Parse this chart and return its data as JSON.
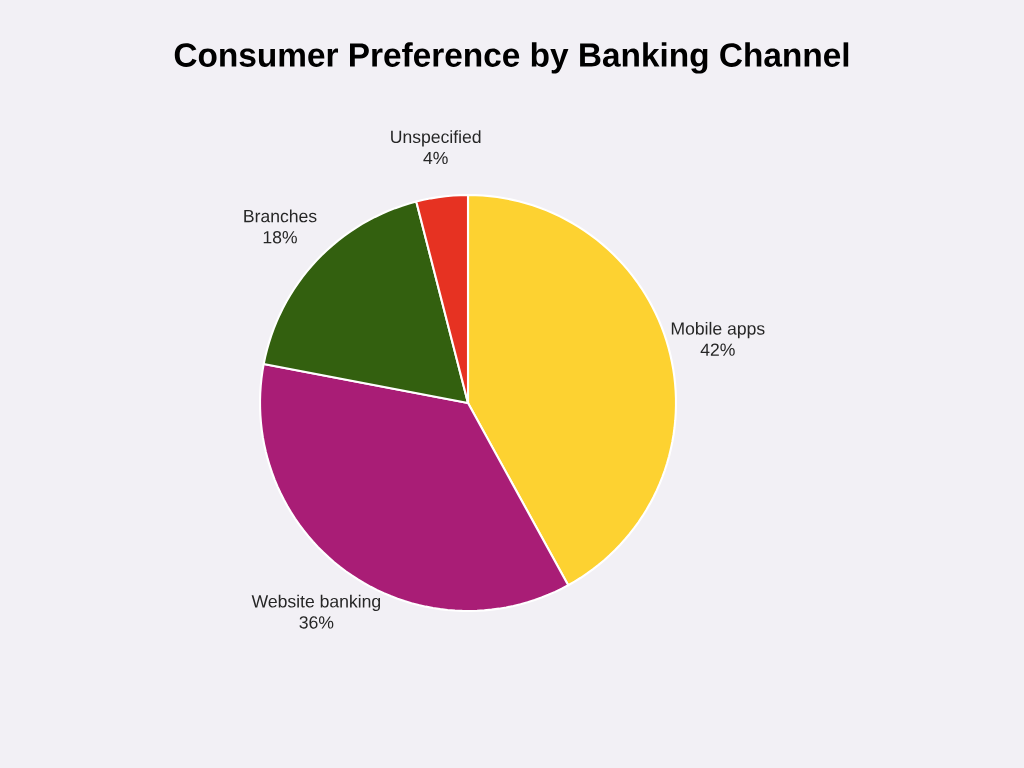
{
  "chart_data": {
    "type": "pie",
    "title": "Consumer Preference by Banking Channel",
    "categories": [
      "Mobile apps",
      "Website banking",
      "Branches",
      "Unspecified"
    ],
    "values": [
      42,
      36,
      18,
      4
    ],
    "value_labels": [
      "42%",
      "36%",
      "18%",
      "4%"
    ],
    "colors": [
      "#fdd231",
      "#a91d76",
      "#33600f",
      "#e63222"
    ]
  }
}
